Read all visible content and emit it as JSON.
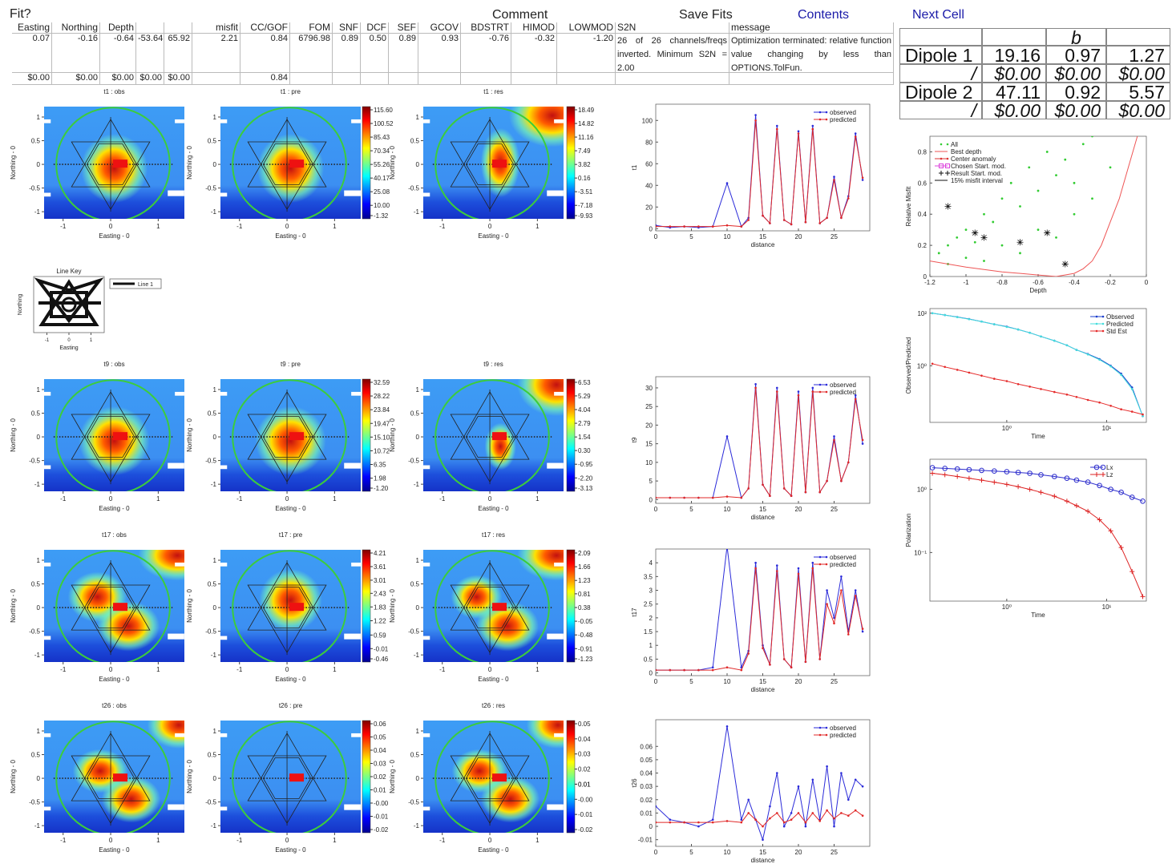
{
  "header": {
    "fit": "Fit?",
    "comment": "Comment",
    "save_fits": "Save Fits",
    "contents": "Contents",
    "next_cell": "Next Cell"
  },
  "table": {
    "columns": [
      {
        "name": "Easting",
        "values": [
          "0.07",
          "$0.00"
        ]
      },
      {
        "name": "Northing",
        "values": [
          "-0.16",
          "$0.00"
        ]
      },
      {
        "name": "Depth",
        "values": [
          "-0.64",
          "$0.00"
        ]
      },
      {
        "values": [
          "-53.64",
          "$0.00"
        ]
      },
      {
        "values": [
          "65.92",
          "$0.00"
        ]
      },
      {
        "name": "misfit",
        "values": [
          "2.21"
        ]
      },
      {
        "name": "CC/GOF",
        "values": [
          "0.84",
          "0.84"
        ]
      },
      {
        "name": "FOM",
        "values": [
          "6796.98"
        ]
      },
      {
        "name": "SNF",
        "values": [
          "0.89"
        ]
      },
      {
        "name": "DCF",
        "values": [
          "0.50"
        ]
      },
      {
        "name": "SEF",
        "values": [
          "0.89"
        ]
      },
      {
        "name": "GCOV",
        "values": [
          "0.93"
        ]
      },
      {
        "name": "BDSTRT",
        "values": [
          "-0.76"
        ]
      },
      {
        "name": "HIMOD",
        "values": [
          "-0.32"
        ]
      },
      {
        "name": "LOWMOD",
        "values": [
          "-1.20"
        ]
      },
      {
        "name": "S2N",
        "values": [
          "26 of 26 channels/freqs inverted. Minimum S2N = 2.00"
        ]
      },
      {
        "name": "message",
        "values": [
          "Optimization terminated: relative function value changing by less than OPTIONS.TolFun."
        ]
      }
    ]
  },
  "dipoles": {
    "header": "b",
    "rows": [
      [
        "Dipole 1",
        "19.16",
        "0.97",
        "1.27"
      ],
      [
        "/",
        "$0.00",
        "$0.00",
        "$0.00"
      ],
      [
        "Dipole 2",
        "47.11",
        "0.92",
        "5.57"
      ],
      [
        "/",
        "$0.00",
        "$0.00",
        "$0.00"
      ]
    ]
  },
  "map_axes": {
    "xlabel": "Easting - 0",
    "ylabel": "Northing - 0",
    "xlim": [
      -1.4,
      1.55
    ],
    "ylim": [
      -1.15,
      1.22
    ],
    "xticks": [
      -1,
      0,
      1
    ],
    "yticks": [
      1,
      0.5,
      0,
      -0.5,
      -1
    ]
  },
  "rows": [
    {
      "titles": [
        "t1 : obs",
        "t1 : pre",
        "t1 : res"
      ],
      "colorbars": [
        [
          {
            "value": 115.6,
            "label": "115.60"
          },
          100.52,
          85.43,
          70.34,
          55.26,
          40.17,
          25.08,
          {
            "value": 10,
            "label": "10.00"
          },
          -1.32
        ],
        [
          18.49,
          14.82,
          11.16,
          7.49,
          3.82,
          0.16,
          -3.51,
          -7.18,
          -9.93
        ]
      ],
      "line": {
        "type": "line",
        "xlabel": "distance",
        "ylabel": "t1",
        "xlim": [
          0,
          30
        ],
        "xticks": [
          0,
          5,
          10,
          15,
          20,
          25
        ],
        "ylim": [
          -2,
          115
        ],
        "yticks": [
          0,
          20,
          40,
          60,
          80,
          100
        ],
        "legend": "upper right",
        "x": [
          0,
          2,
          4,
          6,
          8,
          10,
          12,
          13,
          14,
          15,
          16,
          17,
          18,
          19,
          20,
          21,
          22,
          23,
          24,
          25,
          26,
          27,
          28,
          29
        ],
        "series": [
          {
            "name": "observed",
            "color": "#2b2bd9",
            "marker": "dot",
            "values": [
              3,
              1,
              2,
              1,
              2,
              42,
              2,
              10,
              105,
              12,
              5,
              95,
              8,
              4,
              90,
              6,
              95,
              5,
              10,
              48,
              10,
              30,
              88,
              45
            ]
          },
          {
            "name": "predicted",
            "color": "#e02828",
            "marker": "dot",
            "values": [
              2,
              2,
              2,
              2,
              2,
              3,
              2,
              8,
              100,
              12,
              5,
              92,
              8,
              4,
              88,
              6,
              92,
              5,
              10,
              45,
              10,
              28,
              85,
              47
            ]
          }
        ]
      }
    },
    {
      "titles": [
        "t9 : obs",
        "t9 : pre",
        "t9 : res"
      ],
      "colorbars": [
        [
          32.59,
          28.22,
          23.84,
          19.47,
          {
            "value": 15.1,
            "label": "15.10"
          },
          10.72,
          6.35,
          1.98,
          {
            "value": -1.2,
            "label": "-1.20"
          }
        ],
        [
          6.53,
          5.29,
          4.04,
          2.79,
          1.54,
          {
            "value": 0.3,
            "label": "0.30"
          },
          -0.95,
          {
            "value": -2.2,
            "label": "-2.20"
          },
          -3.13
        ]
      ],
      "line": {
        "type": "line",
        "xlabel": "distance",
        "ylabel": "t9",
        "xlim": [
          0,
          30
        ],
        "xticks": [
          0,
          5,
          10,
          15,
          20,
          25
        ],
        "ylim": [
          -1,
          33
        ],
        "yticks": [
          0,
          5,
          10,
          15,
          20,
          25,
          30
        ],
        "legend": "upper right",
        "x": [
          0,
          2,
          4,
          6,
          8,
          10,
          12,
          13,
          14,
          15,
          16,
          17,
          18,
          19,
          20,
          21,
          22,
          23,
          24,
          25,
          26,
          27,
          28,
          29
        ],
        "series": [
          {
            "name": "observed",
            "color": "#2b2bd9",
            "marker": "dot",
            "values": [
              0.5,
              0.5,
              0.5,
              0.5,
              0.5,
              17,
              0.5,
              3,
              31,
              4,
              1,
              30,
              3,
              1,
              29,
              2,
              30,
              2,
              5,
              17,
              5,
              10,
              28,
              15
            ]
          },
          {
            "name": "predicted",
            "color": "#e02828",
            "marker": "dot",
            "values": [
              0.5,
              0.5,
              0.5,
              0.5,
              0.5,
              0.8,
              0.5,
              3,
              30,
              4,
              1,
              29,
              3,
              1,
              28,
              2,
              29,
              2,
              5,
              16,
              5,
              10,
              27,
              16
            ]
          }
        ]
      }
    },
    {
      "titles": [
        "t17 : obs",
        "t17 : pre",
        "t17 : res"
      ],
      "colorbars": [
        [
          4.21,
          3.61,
          3.01,
          2.43,
          1.83,
          1.22,
          0.59,
          -0.01,
          -0.46
        ],
        [
          2.09,
          1.66,
          1.23,
          0.81,
          0.38,
          -0.05,
          -0.48,
          -0.91,
          -1.23
        ]
      ],
      "line": {
        "type": "line",
        "xlabel": "distance",
        "ylabel": "t17",
        "xlim": [
          0,
          30
        ],
        "xticks": [
          0,
          5,
          10,
          15,
          20,
          25
        ],
        "ylim": [
          -0.1,
          4.5
        ],
        "yticks": [
          0,
          0.5,
          1,
          1.5,
          2,
          2.5,
          3,
          3.5,
          4
        ],
        "legend": "upper right",
        "x": [
          0,
          2,
          4,
          6,
          8,
          10,
          12,
          13,
          14,
          15,
          16,
          17,
          18,
          19,
          20,
          21,
          22,
          23,
          24,
          25,
          26,
          27,
          28,
          29
        ],
        "series": [
          {
            "name": "observed",
            "color": "#2b2bd9",
            "marker": "dot",
            "values": [
              0.1,
              0.1,
              0.1,
              0.1,
              0.2,
              4.6,
              0.2,
              0.8,
              4.0,
              1.0,
              0.3,
              3.9,
              0.5,
              0.2,
              3.8,
              0.4,
              4.0,
              0.5,
              3.0,
              2.0,
              3.5,
              1.5,
              3.0,
              1.5
            ]
          },
          {
            "name": "predicted",
            "color": "#e02828",
            "marker": "dot",
            "values": [
              0.1,
              0.1,
              0.1,
              0.1,
              0.1,
              0.2,
              0.1,
              0.7,
              3.8,
              0.9,
              0.3,
              3.7,
              0.5,
              0.2,
              3.6,
              0.4,
              3.8,
              0.5,
              2.5,
              1.8,
              3.0,
              1.4,
              2.8,
              1.6
            ]
          }
        ]
      }
    },
    {
      "titles": [
        "t26 : obs",
        "t26 : pre",
        "t26 : res"
      ],
      "colorbars": [
        [
          0.06,
          0.05,
          0.04,
          0.03,
          0.02,
          0.01,
          {
            "value": 0,
            "label": "-0.00"
          },
          -0.01,
          -0.02
        ],
        [
          0.05,
          0.04,
          0.03,
          0.02,
          0.01,
          0.01,
          {
            "value": 0,
            "label": "-0.00"
          },
          -0.01,
          -0.02
        ]
      ],
      "line": {
        "type": "line",
        "xlabel": "distance",
        "ylabel": "t26",
        "xlim": [
          0,
          30
        ],
        "xticks": [
          0,
          5,
          10,
          15,
          20,
          25
        ],
        "ylim": [
          -0.015,
          0.08
        ],
        "yticks": [
          -0.01,
          0,
          0.01,
          0.02,
          0.03,
          0.04,
          0.05,
          0.06
        ],
        "legend": "upper right",
        "x": [
          0,
          2,
          4,
          6,
          8,
          10,
          12,
          13,
          14,
          15,
          16,
          17,
          18,
          19,
          20,
          21,
          22,
          23,
          24,
          25,
          26,
          27,
          28,
          29
        ],
        "series": [
          {
            "name": "observed",
            "color": "#2b2bd9",
            "marker": "dot",
            "values": [
              0.015,
              0.005,
              0.003,
              0,
              0.005,
              0.075,
              0.005,
              0.02,
              0.005,
              -0.01,
              0.015,
              0.04,
              0,
              0.01,
              0.03,
              0,
              0.035,
              0.005,
              0.045,
              0,
              0.04,
              0.02,
              0.035,
              0.03
            ]
          },
          {
            "name": "predicted",
            "color": "#e02828",
            "marker": "dot",
            "values": [
              0.003,
              0.003,
              0.003,
              0.003,
              0.003,
              0.004,
              0.003,
              0.01,
              0.005,
              0,
              0.006,
              0.01,
              0.003,
              0.005,
              0.01,
              0.003,
              0.01,
              0.004,
              0.012,
              0.006,
              0.01,
              0.008,
              0.012,
              0.008
            ]
          }
        ]
      }
    }
  ],
  "line_key": {
    "title": "Line Key",
    "entry": "Line 1",
    "xlabel": "Easting",
    "ylabel": "Northing",
    "xlim": [
      -1.6,
      1.6
    ],
    "xticks": [
      -1,
      0,
      1
    ]
  },
  "misfit_chart": {
    "type": "scatter",
    "xlabel": "Depth",
    "ylabel": "Relative Misfit",
    "xlim": [
      -1.2,
      0
    ],
    "xticks": [
      -1.2,
      -1,
      -0.8,
      -0.6,
      -0.4,
      -0.2,
      0
    ],
    "ylim": [
      0,
      0.9
    ],
    "yticks": [
      0,
      0.2,
      0.4,
      0.6,
      0.8
    ],
    "legend": "upper left",
    "series": [
      {
        "name": "All",
        "color": "#33cc33",
        "marker": "dot",
        "line": false,
        "x": [
          -1.15,
          -1.1,
          -1.05,
          -1.0,
          -0.95,
          -0.9,
          -0.85,
          -0.8,
          -0.75,
          -0.7,
          -0.65,
          -0.6,
          -0.55,
          -0.5,
          -0.45,
          -0.4,
          -0.35,
          -0.3,
          -1.1,
          -1.0,
          -0.9,
          -0.8,
          -0.7,
          -0.6,
          -0.5,
          -0.4,
          -0.3,
          -0.2
        ],
        "values": [
          0.15,
          0.2,
          0.25,
          0.3,
          0.22,
          0.4,
          0.35,
          0.5,
          0.6,
          0.45,
          0.7,
          0.55,
          0.8,
          0.65,
          0.75,
          0.6,
          0.85,
          0.9,
          0.08,
          0.12,
          0.1,
          0.2,
          0.15,
          0.3,
          0.25,
          0.4,
          0.5,
          0.7
        ]
      },
      {
        "name": "Best depth",
        "color": "#ee5555",
        "marker": "none",
        "x": [
          -1.2,
          -1.0,
          -0.8,
          -0.6,
          -0.5,
          -0.4,
          -0.35,
          -0.3,
          -0.25,
          -0.2,
          -0.15,
          -0.1,
          -0.05
        ],
        "values": [
          0.1,
          0.06,
          0.03,
          0.01,
          0,
          0.02,
          0.05,
          0.1,
          0.2,
          0.35,
          0.5,
          0.7,
          0.9
        ]
      },
      {
        "name": "Center anomaly",
        "color": "#dd3333",
        "marker": "dot"
      },
      {
        "name": "Chosen Start. mod.",
        "color": "#dd44dd",
        "marker": "square"
      },
      {
        "name": "Result Start. mod.",
        "color": "#111111",
        "marker": "plus",
        "line": false,
        "x": [
          -1.1,
          -0.95,
          -0.9,
          -0.7,
          -0.55,
          -0.45
        ],
        "values": [
          0.45,
          0.28,
          0.25,
          0.22,
          0.28,
          0.08
        ]
      },
      {
        "name": "15% misfit interval",
        "color": "#111111",
        "marker": "none"
      }
    ]
  },
  "decay_chart": {
    "type": "line",
    "xlabel": "Time",
    "ylabel": "Observed/Predicted",
    "xscale": "log",
    "yscale": "log",
    "xlim": [
      0.17,
      25
    ],
    "ylim": [
      0.007,
      150
    ],
    "legend": "upper right",
    "xticks": [
      {
        "value": 1,
        "label": "10⁰"
      },
      {
        "value": 10,
        "label": "10¹"
      }
    ],
    "yticks": [
      {
        "value": 100,
        "label": "10²"
      },
      {
        "value": 1,
        "label": "10⁰"
      }
    ],
    "x": [
      0.18,
      0.24,
      0.32,
      0.42,
      0.56,
      0.75,
      1.0,
      1.3,
      1.7,
      2.2,
      3,
      4,
      5,
      6.5,
      8.5,
      11,
      14,
      18,
      23
    ],
    "series": [
      {
        "name": "Observed",
        "color": "#1a3ccc",
        "marker": "dot",
        "values": [
          100,
          85,
          72,
          60,
          48,
          38,
          31,
          24,
          18,
          13,
          9,
          6,
          4,
          2.8,
          1.8,
          1,
          0.5,
          0.15,
          0.012
        ]
      },
      {
        "name": "Predicted",
        "color": "#44dddd",
        "marker": "dot",
        "values": [
          100,
          85,
          71,
          59,
          48,
          38,
          30,
          24,
          18,
          13,
          9,
          6,
          4,
          2.7,
          1.7,
          0.95,
          0.45,
          0.13,
          0.012
        ]
      },
      {
        "name": "Std Est",
        "color": "#e52a2a",
        "marker": "dot",
        "values": [
          1.2,
          0.9,
          0.7,
          0.55,
          0.42,
          0.32,
          0.26,
          0.2,
          0.16,
          0.13,
          0.1,
          0.08,
          0.065,
          0.05,
          0.04,
          0.03,
          0.022,
          0.018,
          0.014
        ]
      }
    ]
  },
  "polarization_chart": {
    "type": "line",
    "xlabel": "Time",
    "ylabel": "Polarization",
    "xscale": "log",
    "yscale": "log",
    "xlim": [
      0.17,
      25
    ],
    "ylim": [
      0.017,
      3
    ],
    "legend": "upper right",
    "xticks": [
      {
        "value": 1,
        "label": "10⁰"
      },
      {
        "value": 10,
        "label": "10¹"
      }
    ],
    "yticks": [
      {
        "value": 1,
        "label": "10⁰"
      },
      {
        "value": 0.1,
        "label": "10⁻¹"
      }
    ],
    "x": [
      0.18,
      0.24,
      0.32,
      0.42,
      0.56,
      0.75,
      1.0,
      1.3,
      1.7,
      2.2,
      3,
      4,
      5,
      6.5,
      8.5,
      11,
      14,
      18,
      23
    ],
    "series": [
      {
        "name": "Lx",
        "color": "#2b2bcc",
        "marker": "circle",
        "values": [
          2.2,
          2.15,
          2.1,
          2.05,
          2.0,
          1.95,
          1.9,
          1.85,
          1.8,
          1.7,
          1.6,
          1.5,
          1.4,
          1.3,
          1.15,
          1.0,
          0.9,
          0.75,
          0.65
        ]
      },
      {
        "name": "Lz",
        "color": "#dd2222",
        "marker": "plus",
        "values": [
          1.8,
          1.7,
          1.6,
          1.5,
          1.4,
          1.3,
          1.2,
          1.1,
          1.0,
          0.9,
          0.78,
          0.65,
          0.55,
          0.45,
          0.33,
          0.22,
          0.12,
          0.05,
          0.02
        ]
      }
    ]
  }
}
